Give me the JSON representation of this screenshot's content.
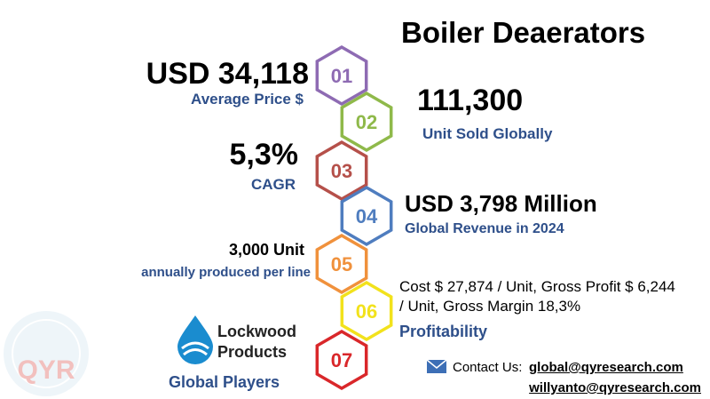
{
  "title": "Boiler Deaerators",
  "items": [
    {
      "number": "01",
      "color": "#8e6bb3",
      "value": "USD 34,118",
      "caption": "Average Price $"
    },
    {
      "number": "02",
      "color": "#8fb94a",
      "value": "111,300",
      "caption": "Unit Sold Globally"
    },
    {
      "number": "03",
      "color": "#b5504a",
      "value": "5,3%",
      "caption": "CAGR"
    },
    {
      "number": "04",
      "color": "#4f7dbf",
      "value": "USD 3,798 Million",
      "caption": "Global Revenue in 2024"
    },
    {
      "number": "05",
      "color": "#f0913c",
      "value": "3,000 Unit",
      "caption": "annually produced per line"
    },
    {
      "number": "06",
      "color": "#f2e21c",
      "value": "Cost $ 27,874 / Unit, Gross Profit $ 6,244 / Unit, Gross Margin 18,3%",
      "caption": "Profitability"
    },
    {
      "number": "07",
      "color": "#d9272a",
      "logo": [
        "Lockwood",
        "Products"
      ],
      "caption": "Global Players"
    }
  ],
  "contact": {
    "label": "Contact Us:",
    "emails": [
      "global@qyresearch.com",
      "willyanto@qyresearch.com"
    ]
  },
  "watermark": "QYR"
}
